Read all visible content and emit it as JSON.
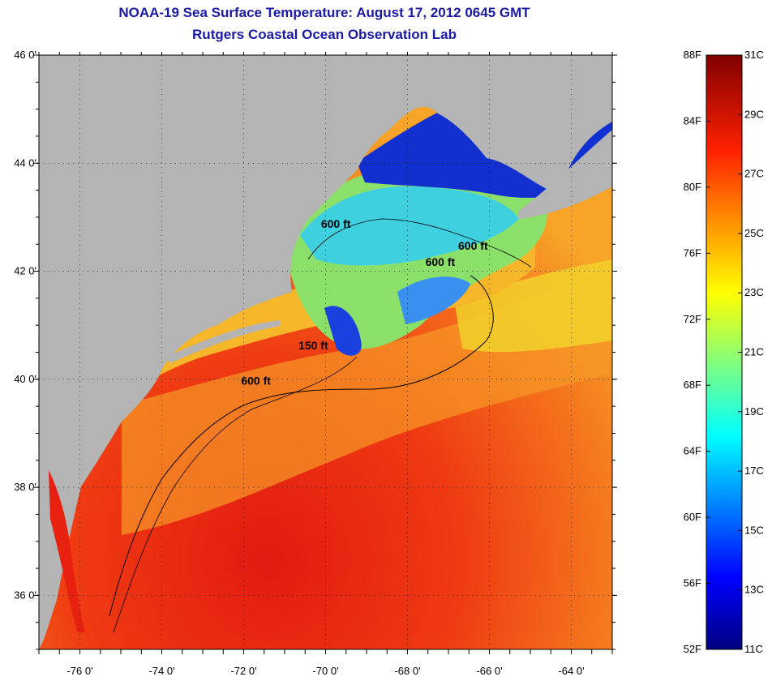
{
  "title": "NOAA-19 Sea Surface Temperature:  August 17, 2012 0645 GMT",
  "subtitle": "Rutgers Coastal Ocean Observation Lab",
  "map": {
    "lat_range": [
      35,
      46
    ],
    "lon_range": [
      -77,
      -63
    ],
    "lat_ticks": [
      {
        "value": 46,
        "label": "46 0'"
      },
      {
        "value": 44,
        "label": "44 0'"
      },
      {
        "value": 42,
        "label": "42 0'"
      },
      {
        "value": 40,
        "label": "40 0'"
      },
      {
        "value": 38,
        "label": "38 0'"
      },
      {
        "value": 36,
        "label": "36 0'"
      }
    ],
    "lon_ticks": [
      {
        "value": -76,
        "label": "-76 0'"
      },
      {
        "value": -74,
        "label": "-74 0'"
      },
      {
        "value": -72,
        "label": "-72 0'"
      },
      {
        "value": -70,
        "label": "-70 0'"
      },
      {
        "value": -68,
        "label": "-68 0'"
      },
      {
        "value": -66,
        "label": "-66 0'"
      },
      {
        "value": -64,
        "label": "-64 0'"
      }
    ],
    "contour_labels": [
      {
        "text": "600 ft",
        "lon": -71.7,
        "lat": 39.9
      },
      {
        "text": "150 ft",
        "lon": -70.3,
        "lat": 40.55
      },
      {
        "text": "600 ft",
        "lon": -69.75,
        "lat": 42.8
      },
      {
        "text": "600 ft",
        "lon": -66.4,
        "lat": 42.4
      },
      {
        "text": "600 ft",
        "lon": -67.2,
        "lat": 42.1
      }
    ],
    "land_color": "#b4b4b4",
    "grid": "dotted"
  },
  "colorbar": {
    "f_labels": [
      "88F",
      "84F",
      "80F",
      "76F",
      "72F",
      "68F",
      "64F",
      "60F",
      "56F",
      "52F"
    ],
    "c_labels": [
      "31C",
      "29C",
      "27C",
      "25C",
      "23C",
      "21C",
      "19C",
      "17C",
      "15C",
      "13C",
      "11C"
    ]
  }
}
